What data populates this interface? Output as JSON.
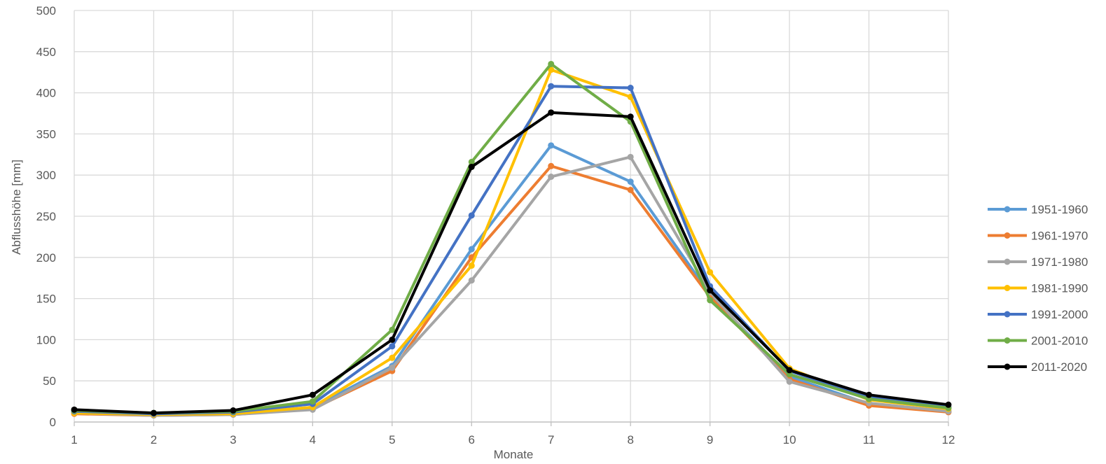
{
  "chart_data": {
    "type": "line",
    "title": "",
    "xlabel": "Monate",
    "ylabel": "Abflusshöhe [mm]",
    "x": [
      1,
      2,
      3,
      4,
      5,
      6,
      7,
      8,
      9,
      10,
      11,
      12
    ],
    "xlim": [
      1,
      12
    ],
    "ylim": [
      0,
      500
    ],
    "yticks": [
      0,
      50,
      100,
      150,
      200,
      250,
      300,
      350,
      400,
      450,
      500
    ],
    "grid": true,
    "legend_position": "right",
    "marker": "circle",
    "series": [
      {
        "name": "1951-1960",
        "color": "#5B9BD5",
        "values": [
          12,
          9,
          10,
          18,
          68,
          210,
          336,
          292,
          155,
          55,
          22,
          13
        ]
      },
      {
        "name": "1961-1970",
        "color": "#ED7D31",
        "values": [
          10,
          8,
          9,
          16,
          62,
          200,
          311,
          282,
          152,
          52,
          20,
          12
        ]
      },
      {
        "name": "1971-1980",
        "color": "#A5A5A5",
        "values": [
          11,
          8,
          9,
          15,
          66,
          172,
          298,
          322,
          158,
          49,
          23,
          13
        ]
      },
      {
        "name": "1981-1990",
        "color": "#FFC000",
        "values": [
          11,
          9,
          10,
          18,
          78,
          190,
          428,
          395,
          182,
          65,
          27,
          16
        ]
      },
      {
        "name": "1991-2000",
        "color": "#4472C4",
        "values": [
          13,
          10,
          12,
          22,
          92,
          251,
          408,
          406,
          165,
          62,
          30,
          18
        ]
      },
      {
        "name": "2001-2010",
        "color": "#70AD47",
        "values": [
          14,
          11,
          13,
          25,
          112,
          316,
          435,
          365,
          148,
          58,
          28,
          17
        ]
      },
      {
        "name": "2011-2020",
        "color": "#000000",
        "values": [
          15,
          11,
          14,
          33,
          100,
          310,
          376,
          371,
          160,
          63,
          33,
          21
        ]
      }
    ]
  }
}
